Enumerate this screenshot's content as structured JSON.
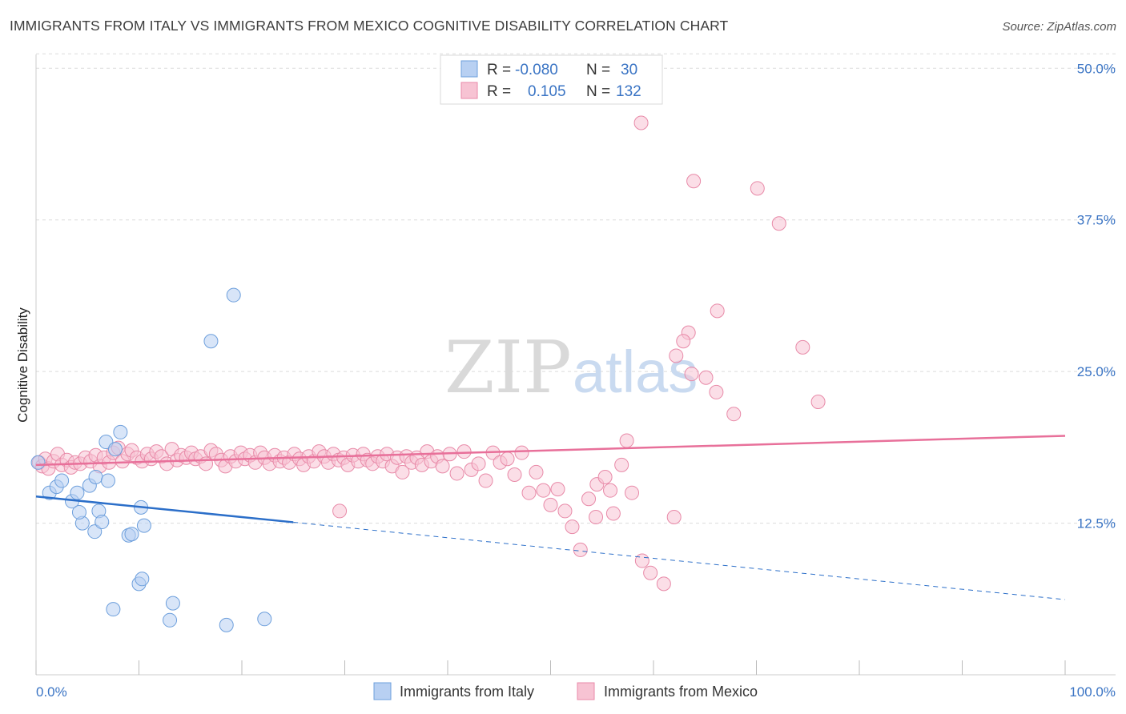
{
  "title": "IMMIGRANTS FROM ITALY VS IMMIGRANTS FROM MEXICO COGNITIVE DISABILITY CORRELATION CHART",
  "source": "Source: ZipAtlas.com",
  "watermark": {
    "zip": "ZIP",
    "atlas": "atlas"
  },
  "colors": {
    "italy_fill": "#b8d0f2",
    "italy_stroke": "#6d9fdc",
    "italy_line": "#2c6fc9",
    "mexico_fill": "#f7c3d3",
    "mexico_stroke": "#e88aa8",
    "mexico_line": "#e8709a",
    "tick_label": "#3a74c4",
    "grid": "#dcdcdc"
  },
  "legend": {
    "rows": [
      {
        "r_label": "R = ",
        "r_value": "-0.080",
        "n_label": "N = ",
        "n_value": "30"
      },
      {
        "r_label": "R = ",
        "r_value": "0.105",
        "n_label": "N = ",
        "n_value": "132"
      }
    ]
  },
  "chart_data": {
    "type": "scatter",
    "title": "IMMIGRANTS FROM ITALY VS IMMIGRANTS FROM MEXICO COGNITIVE DISABILITY CORRELATION CHART",
    "xlabel": "",
    "ylabel": "Cognitive Disability",
    "xlim": [
      0,
      100
    ],
    "ylim": [
      0,
      52
    ],
    "x_tick_labels": [
      "0.0%",
      "100.0%"
    ],
    "y_ticks": [
      12.5,
      25.0,
      37.5,
      50.0
    ],
    "y_tick_labels": [
      "12.5%",
      "25.0%",
      "37.5%",
      "50.0%"
    ],
    "grid": "horizontal dashed",
    "legend_position": "top-center",
    "series": [
      {
        "name": "Immigrants from Italy",
        "r": -0.08,
        "n": 30,
        "trend": {
          "x0": 0,
          "y0": 14.7,
          "x1": 100,
          "y1": 6.2,
          "solid_until": 25
        },
        "points": [
          [
            0.2,
            17.5
          ],
          [
            1.3,
            15.0
          ],
          [
            2.0,
            15.5
          ],
          [
            2.5,
            16.0
          ],
          [
            3.5,
            14.3
          ],
          [
            4.0,
            15.0
          ],
          [
            5.2,
            15.6
          ],
          [
            5.8,
            16.3
          ],
          [
            4.5,
            12.5
          ],
          [
            4.2,
            13.4
          ],
          [
            6.1,
            13.5
          ],
          [
            5.7,
            11.8
          ],
          [
            6.4,
            12.6
          ],
          [
            7.0,
            16.0
          ],
          [
            6.8,
            19.2
          ],
          [
            7.7,
            18.6
          ],
          [
            8.2,
            20.0
          ],
          [
            9.0,
            11.5
          ],
          [
            9.3,
            11.6
          ],
          [
            10.2,
            13.8
          ],
          [
            10.5,
            12.3
          ],
          [
            10.0,
            7.5
          ],
          [
            10.3,
            7.9
          ],
          [
            7.5,
            5.4
          ],
          [
            13.3,
            5.9
          ],
          [
            13.0,
            4.5
          ],
          [
            18.5,
            4.1
          ],
          [
            17.0,
            27.5
          ],
          [
            19.2,
            31.3
          ],
          [
            22.2,
            4.6
          ]
        ]
      },
      {
        "name": "Immigrants from Mexico",
        "r": 0.105,
        "n": 132,
        "trend": {
          "x0": 0,
          "y0": 17.3,
          "x1": 100,
          "y1": 19.7
        },
        "points": [
          [
            0.3,
            17.5
          ],
          [
            0.6,
            17.2
          ],
          [
            0.9,
            17.8
          ],
          [
            1.2,
            17.0
          ],
          [
            1.7,
            17.6
          ],
          [
            2.1,
            18.2
          ],
          [
            2.5,
            17.3
          ],
          [
            3.0,
            17.7
          ],
          [
            3.4,
            17.1
          ],
          [
            3.8,
            17.5
          ],
          [
            4.3,
            17.4
          ],
          [
            4.8,
            17.9
          ],
          [
            5.3,
            17.6
          ],
          [
            5.8,
            18.1
          ],
          [
            6.2,
            17.2
          ],
          [
            6.6,
            17.9
          ],
          [
            7.1,
            17.5
          ],
          [
            7.5,
            18.3
          ],
          [
            8.0,
            18.7
          ],
          [
            8.4,
            17.6
          ],
          [
            8.9,
            18.2
          ],
          [
            9.3,
            18.5
          ],
          [
            9.8,
            17.9
          ],
          [
            10.3,
            17.6
          ],
          [
            10.8,
            18.2
          ],
          [
            11.2,
            17.8
          ],
          [
            11.7,
            18.4
          ],
          [
            12.2,
            18.0
          ],
          [
            12.7,
            17.4
          ],
          [
            13.2,
            18.6
          ],
          [
            13.7,
            17.7
          ],
          [
            14.1,
            18.1
          ],
          [
            14.6,
            17.9
          ],
          [
            15.1,
            18.3
          ],
          [
            15.5,
            17.8
          ],
          [
            16.0,
            18.0
          ],
          [
            16.5,
            17.4
          ],
          [
            17.0,
            18.5
          ],
          [
            17.5,
            18.2
          ],
          [
            18.0,
            17.7
          ],
          [
            18.4,
            17.2
          ],
          [
            18.9,
            18.0
          ],
          [
            19.4,
            17.6
          ],
          [
            19.9,
            18.3
          ],
          [
            20.3,
            17.8
          ],
          [
            20.8,
            18.1
          ],
          [
            21.3,
            17.5
          ],
          [
            21.8,
            18.3
          ],
          [
            22.2,
            17.9
          ],
          [
            22.7,
            17.4
          ],
          [
            23.2,
            18.1
          ],
          [
            23.7,
            17.6
          ],
          [
            24.1,
            17.9
          ],
          [
            24.6,
            17.5
          ],
          [
            25.1,
            18.2
          ],
          [
            25.6,
            17.8
          ],
          [
            26.0,
            17.3
          ],
          [
            26.5,
            18.0
          ],
          [
            27.0,
            17.6
          ],
          [
            27.5,
            18.4
          ],
          [
            28.0,
            18.0
          ],
          [
            28.4,
            17.5
          ],
          [
            28.9,
            18.2
          ],
          [
            29.4,
            17.7
          ],
          [
            29.9,
            17.9
          ],
          [
            30.3,
            17.3
          ],
          [
            30.8,
            18.1
          ],
          [
            31.3,
            17.6
          ],
          [
            31.8,
            18.2
          ],
          [
            32.2,
            17.7
          ],
          [
            32.7,
            17.4
          ],
          [
            33.2,
            18.0
          ],
          [
            33.7,
            17.6
          ],
          [
            34.1,
            18.2
          ],
          [
            34.6,
            17.2
          ],
          [
            35.1,
            17.9
          ],
          [
            35.6,
            16.7
          ],
          [
            36.0,
            18.0
          ],
          [
            36.5,
            17.5
          ],
          [
            37.0,
            17.9
          ],
          [
            37.5,
            17.3
          ],
          [
            38.0,
            18.4
          ],
          [
            38.4,
            17.6
          ],
          [
            39.0,
            18.0
          ],
          [
            39.5,
            17.2
          ],
          [
            40.2,
            18.2
          ],
          [
            40.9,
            16.6
          ],
          [
            41.6,
            18.4
          ],
          [
            42.3,
            16.9
          ],
          [
            43.0,
            17.4
          ],
          [
            43.7,
            16.0
          ],
          [
            44.4,
            18.3
          ],
          [
            45.1,
            17.5
          ],
          [
            45.8,
            17.8
          ],
          [
            46.5,
            16.5
          ],
          [
            47.2,
            18.3
          ],
          [
            47.9,
            15.0
          ],
          [
            48.6,
            16.7
          ],
          [
            49.3,
            15.2
          ],
          [
            50.0,
            14.0
          ],
          [
            50.7,
            15.3
          ],
          [
            51.4,
            13.5
          ],
          [
            52.1,
            12.2
          ],
          [
            52.9,
            10.3
          ],
          [
            53.7,
            14.5
          ],
          [
            54.5,
            15.7
          ],
          [
            55.3,
            16.3
          ],
          [
            56.1,
            13.3
          ],
          [
            56.9,
            17.3
          ],
          [
            57.9,
            15.0
          ],
          [
            58.9,
            9.4
          ],
          [
            59.7,
            8.4
          ],
          [
            61.0,
            7.5
          ],
          [
            62.0,
            13.0
          ],
          [
            63.7,
            24.8
          ],
          [
            65.1,
            24.5
          ],
          [
            66.1,
            23.3
          ],
          [
            67.8,
            21.5
          ],
          [
            66.2,
            30.0
          ],
          [
            63.4,
            28.2
          ],
          [
            62.9,
            27.5
          ],
          [
            62.2,
            26.3
          ],
          [
            58.8,
            45.5
          ],
          [
            63.9,
            40.7
          ],
          [
            70.1,
            40.1
          ],
          [
            72.2,
            37.2
          ],
          [
            74.5,
            27.0
          ],
          [
            76.0,
            22.5
          ],
          [
            57.4,
            19.3
          ],
          [
            29.5,
            13.5
          ],
          [
            55.8,
            15.2
          ],
          [
            54.4,
            13.0
          ]
        ]
      }
    ]
  },
  "bottom_legend": [
    "Immigrants from Italy",
    "Immigrants from Mexico"
  ]
}
